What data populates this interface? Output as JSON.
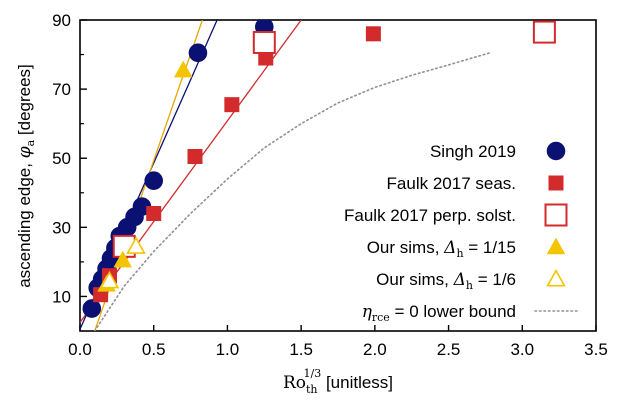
{
  "chart_data": {
    "type": "scatter",
    "title": "",
    "xlabel": {
      "prefix": "Ro",
      "sub": "th",
      "sup": "1/3",
      "suffix": " [unitless]"
    },
    "ylabel": {
      "prefix": "ascending edge, ",
      "symbol": "φ",
      "sub": "a",
      "suffix": " [degrees]"
    },
    "xlim": [
      0,
      3.5
    ],
    "ylim": [
      0,
      90
    ],
    "xticks": [
      "0.0",
      "0.5",
      "1.0",
      "1.5",
      "2.0",
      "2.5",
      "3.0",
      "3.5"
    ],
    "xtick_values": [
      0,
      0.5,
      1.0,
      1.5,
      2.0,
      2.5,
      3.0,
      3.5
    ],
    "yticks": [
      "10",
      "30",
      "50",
      "70",
      "90"
    ],
    "ytick_values": [
      10,
      30,
      50,
      70,
      90
    ],
    "yminor_ticks": [
      20,
      40,
      60,
      80
    ],
    "grid": false,
    "legend_position": "center-right",
    "series": [
      {
        "name": "Singh 2019",
        "marker": "circle",
        "color": "#0a1172",
        "filled": true,
        "x": [
          0.08,
          0.12,
          0.15,
          0.18,
          0.21,
          0.24,
          0.27,
          0.32,
          0.37,
          0.42,
          0.5,
          0.8,
          1.25
        ],
        "y": [
          6.5,
          12.5,
          15,
          18,
          21,
          24,
          27.5,
          30,
          33,
          36,
          43.5,
          80.5,
          88
        ]
      },
      {
        "name": "Faulk 2017 seas.",
        "marker": "square",
        "color": "#d32b2b",
        "filled": true,
        "x": [
          0.14,
          0.2,
          0.31,
          0.5,
          0.78,
          1.03,
          1.26,
          1.99,
          3.15
        ],
        "y": [
          10.5,
          16,
          25,
          34,
          50.5,
          65.5,
          79,
          86,
          86.5
        ]
      },
      {
        "name": "Faulk 2017 perp. solst.",
        "marker": "square",
        "color": "#d32b2b",
        "filled": false,
        "x": [
          0.3,
          1.25,
          3.15
        ],
        "y": [
          24.5,
          83.5,
          86.5
        ]
      },
      {
        "name": "Our sims, Δh = 1/15",
        "label": {
          "prefix": "Our sims, ",
          "symbol": "Δ",
          "sub": "h",
          "suffix": " = 1/15"
        },
        "marker": "triangle",
        "color": "#f2c500",
        "filled": true,
        "x": [
          0.18,
          0.29,
          0.7
        ],
        "y": [
          13.5,
          20.5,
          75.5
        ]
      },
      {
        "name": "Our sims, Δh = 1/6",
        "label": {
          "prefix": "Our sims, ",
          "symbol": "Δ",
          "sub": "h",
          "suffix": " = 1/6"
        },
        "marker": "triangle",
        "color": "#f2c500",
        "filled": false,
        "x": [
          0.2,
          0.38
        ],
        "y": [
          14.5,
          24.5
        ]
      },
      {
        "name": "ηrce = 0 lower bound",
        "label": {
          "symbol": "η",
          "sub": "rce",
          "suffix": " = 0 lower bound"
        },
        "marker": "dotted-line",
        "color": "#909090",
        "filled": false,
        "x": [
          0.1,
          0.3,
          0.5,
          0.75,
          1.0,
          1.25,
          1.5,
          1.75,
          2.0,
          2.25,
          2.5,
          2.78
        ],
        "y": [
          0,
          13,
          23,
          34,
          44,
          53,
          60,
          66,
          70.5,
          74,
          77,
          80.5
        ]
      }
    ],
    "fit_lines": [
      {
        "color": "#0a1172",
        "x": [
          0.0,
          0.93
        ],
        "y": [
          0.5,
          90
        ]
      },
      {
        "color": "#e8a800",
        "x": [
          0.1,
          0.83
        ],
        "y": [
          0,
          90
        ]
      },
      {
        "color": "#d32b2b",
        "x": [
          0.0,
          1.5
        ],
        "y": [
          2.5,
          90
        ]
      }
    ]
  }
}
